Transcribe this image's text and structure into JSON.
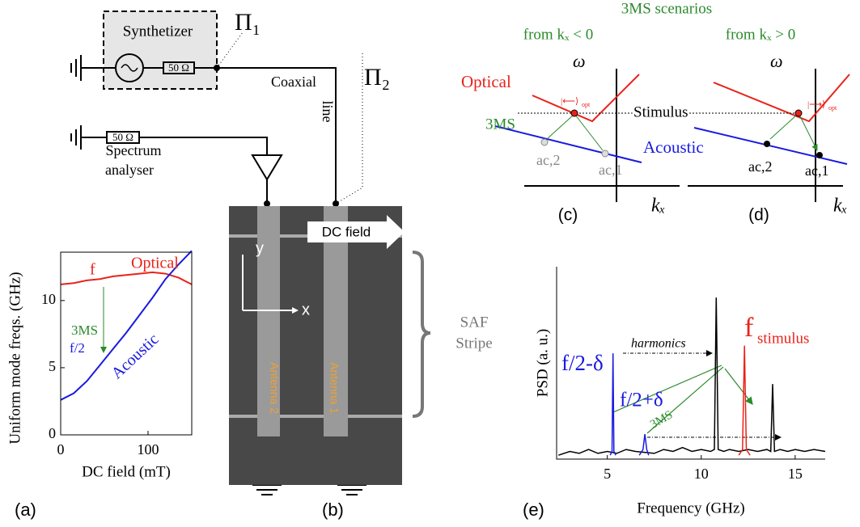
{
  "chart_data": [
    {
      "type": "line",
      "x_label": "DC field (mT)",
      "y_label": "Uniform mode freqs. (GHz)",
      "x": [
        0,
        15,
        30,
        45,
        60,
        75,
        90,
        105,
        120,
        135,
        150
      ],
      "series": [
        {
          "name": "Optical",
          "color": "#e8231a",
          "values": [
            11.2,
            11.3,
            11.5,
            11.6,
            11.8,
            11.9,
            12.0,
            12.1,
            12.0,
            11.7,
            11.2
          ]
        },
        {
          "name": "Acoustic",
          "color": "#1a1ae0",
          "values": [
            2.6,
            3.1,
            4.0,
            5.2,
            6.4,
            7.6,
            8.9,
            10.2,
            11.6,
            12.7,
            13.7
          ]
        }
      ],
      "xlim": [
        0,
        150
      ],
      "ylim": [
        0,
        13.6
      ],
      "xticks": [
        0,
        100
      ],
      "yticks": [
        0,
        5,
        10
      ],
      "annotations": [
        "f",
        "3MS",
        "f/2"
      ],
      "panel_label": "(a)"
    },
    {
      "type": "line",
      "x_label": "Frequency (GHz)",
      "y_label": "PSD (a. u.)",
      "series": [
        {
          "color": "#000000",
          "x": [
            2.4,
            3.0,
            3.5,
            4.0,
            4.5,
            5.0,
            5.5,
            6.0,
            6.5,
            7.5,
            8.0,
            8.5,
            9.0,
            9.5,
            10.0,
            10.5,
            10.7,
            10.8,
            10.9,
            11.2,
            11.5,
            12.0,
            12.5,
            13.0,
            13.5,
            13.7,
            13.8,
            13.9,
            14.2,
            14.6,
            15.0,
            15.5,
            16.0,
            16.6
          ],
          "values": [
            0.02,
            0.04,
            0.03,
            0.05,
            0.03,
            0.04,
            0.03,
            0.05,
            0.04,
            0.03,
            0.05,
            0.04,
            0.06,
            0.04,
            0.05,
            0.04,
            0.05,
            0.84,
            0.05,
            0.04,
            0.05,
            0.04,
            0.05,
            0.04,
            0.05,
            0.04,
            0.39,
            0.04,
            0.05,
            0.04,
            0.05,
            0.04,
            0.05,
            0.04
          ]
        },
        {
          "color": "#1a1ae0",
          "x": [
            5.15,
            5.25,
            5.3,
            5.35,
            5.45,
            6.0,
            6.7,
            6.9,
            7.0,
            7.1,
            7.2
          ],
          "values": [
            0.02,
            0.04,
            0.55,
            0.04,
            0.02,
            null,
            0.02,
            0.05,
            0.13,
            0.05,
            0.02
          ]
        },
        {
          "color": "#e8231a",
          "x": [
            12.0,
            12.2,
            12.3,
            12.4,
            12.6
          ],
          "values": [
            0.02,
            0.05,
            0.59,
            0.05,
            0.02
          ]
        }
      ],
      "xlim": [
        2.3,
        16.6
      ],
      "ylim": [
        0,
        1
      ],
      "xticks": [
        5,
        10,
        15
      ],
      "annotations": [
        "f/2-δ",
        "harmonics",
        "f",
        "stimulus",
        "f/2+δ",
        "3MS"
      ],
      "panel_label": "(e)"
    }
  ],
  "diagram": {
    "synthesizer": "Synthetizer",
    "resistor_1": "50 Ω",
    "resistor_2": "50 Ω",
    "pi_1": "Π₁",
    "pi_2": "Π₂",
    "coaxial": "Coaxial",
    "line": "line",
    "spectrum_1": "Spectrum",
    "spectrum_2": "analyser",
    "dc_field": "DC field",
    "axis_y": "y",
    "axis_x": "x",
    "antenna_2": "Antenna 2",
    "antenna_1": "Antenna 1",
    "saf_1": "SAF",
    "saf_2": "Stripe",
    "panel_label": "(b)"
  },
  "dispersion": {
    "title": "3MS scenarios",
    "left_heading": "from kₓ < 0",
    "right_heading": "from kₓ > 0",
    "omega": "ω",
    "kx": "kₓ",
    "optical": "Optical",
    "acoustic": "Acoustic",
    "tms": "3MS",
    "stimulus": "Stimulus",
    "ket_left": "|⟵⟩",
    "ket_right": "|⟶⟩",
    "ket_sub": "opt",
    "ac2": "ac,2",
    "ac1": "ac,1",
    "panel_c": "(c)",
    "panel_d": "(d)"
  }
}
